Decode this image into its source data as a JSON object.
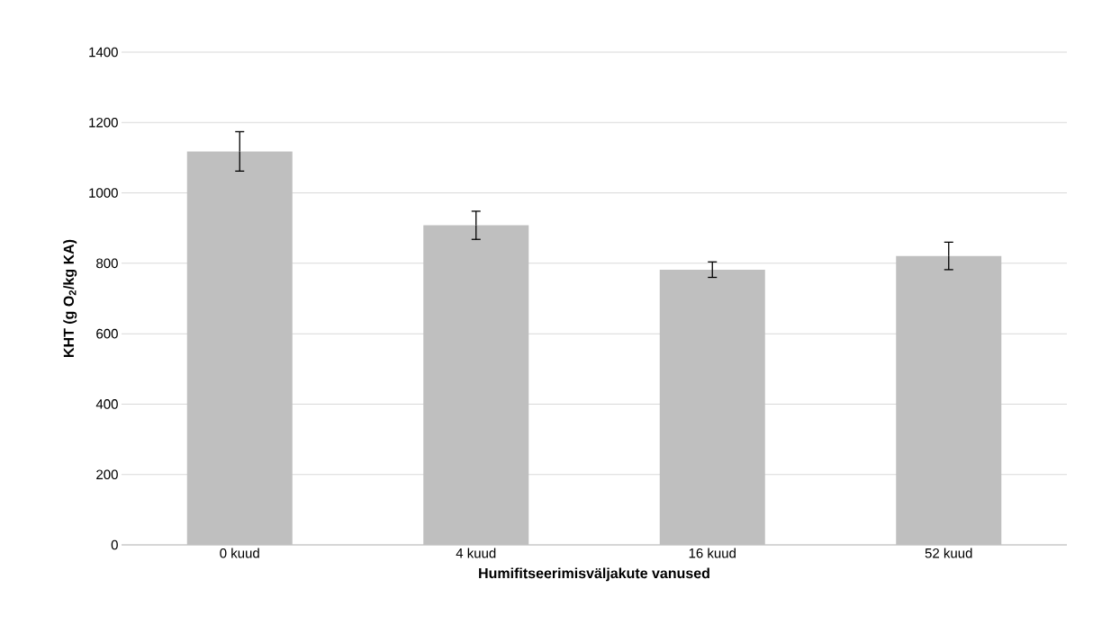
{
  "chart_data": {
    "type": "bar",
    "xlabel": "Humifitseerimisväljakute vanused",
    "ylabel": "KHT (g O$_{2}$/kg KA)",
    "categories": [
      "0 kuud",
      "4 kuud",
      "16 kuud",
      "52 kuud"
    ],
    "values": [
      1118,
      908,
      782,
      821
    ],
    "errors": [
      56,
      40,
      22,
      39
    ],
    "color": "#bfbfbf",
    "ylim": [
      0,
      1400
    ],
    "yticks": [
      0,
      200,
      400,
      600,
      800,
      1000,
      1200,
      1400
    ],
    "grid": "y"
  }
}
